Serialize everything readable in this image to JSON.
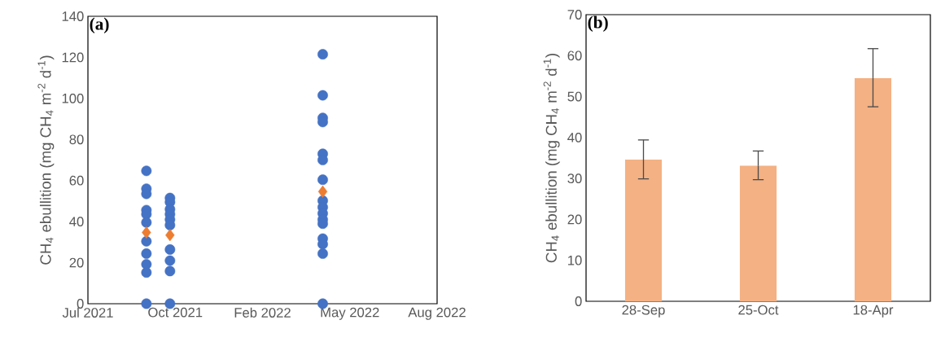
{
  "chart_data": [
    {
      "type": "scatter",
      "title": "(a)",
      "ylabel": "CH$_{4}$ ebullition (mg CH$_{4}$ m$^{-2}$ d$^{-1}$)",
      "xlim": [
        "2021-07-23",
        "2022-08-27"
      ],
      "xticks": [
        {
          "value": "2021-07-23",
          "label": "Jul 2021"
        },
        {
          "value": "2021-10-31",
          "label": "Oct 2021"
        },
        {
          "value": "2022-02-08",
          "label": "Feb 2022"
        },
        {
          "value": "2022-05-19",
          "label": "May 2022"
        },
        {
          "value": "2022-08-27",
          "label": "Aug 2022"
        }
      ],
      "ylim": [
        0,
        140
      ],
      "yticks": [
        0,
        20,
        40,
        60,
        80,
        100,
        120,
        140
      ],
      "series": [
        {
          "color": "#4472c4",
          "marker": "circle",
          "x": [
            "2021-09-28",
            "2021-09-28",
            "2021-09-28",
            "2021-09-28",
            "2021-09-28",
            "2021-09-28",
            "2021-09-28",
            "2021-09-28",
            "2021-09-28",
            "2021-09-28",
            "2021-09-28",
            "2021-10-25",
            "2021-10-25",
            "2021-10-25",
            "2021-10-25",
            "2021-10-25",
            "2021-10-25",
            "2021-10-25",
            "2021-10-25",
            "2021-10-25",
            "2021-10-25",
            "2022-04-18",
            "2022-04-18",
            "2022-04-18",
            "2022-04-18",
            "2022-04-18",
            "2022-04-18",
            "2022-04-18",
            "2022-04-18",
            "2022-04-18",
            "2022-04-18",
            "2022-04-18",
            "2022-04-18",
            "2022-04-18",
            "2022-04-18",
            "2022-04-18",
            "2022-04-18"
          ],
          "values": [
            64.7,
            56,
            53.5,
            45.6,
            43.6,
            39.6,
            30.4,
            24.4,
            19.2,
            15.2,
            0,
            51.5,
            49.5,
            46,
            43.6,
            41,
            38.3,
            26.4,
            21,
            15.9,
            0,
            121.5,
            101.5,
            90.5,
            88.5,
            73,
            70,
            60.4,
            50.2,
            47,
            44,
            41,
            39,
            31.7,
            29,
            24.4,
            0
          ]
        },
        {
          "color": "#ed7d31",
          "marker": "diamond",
          "x": [
            "2021-09-28",
            "2021-10-25",
            "2022-04-18"
          ],
          "values": [
            34.7,
            33.4,
            54.6
          ]
        }
      ]
    },
    {
      "type": "bar",
      "title": "(b)",
      "ylabel": "CH$_{4}$ ebullition (mg CH$_{4}$ m$^{-2}$ d$^{-1}$)",
      "categories": [
        "28-Sep",
        "25-Oct",
        "18-Apr"
      ],
      "values": [
        34.6,
        33.1,
        54.5
      ],
      "color": "#f4b183",
      "errors": [
        [
          29.9,
          39.4
        ],
        [
          29.7,
          36.7
        ],
        [
          47.5,
          61.7
        ]
      ],
      "ylim": [
        0,
        70
      ],
      "yticks": [
        0,
        10,
        20,
        30,
        40,
        50,
        60,
        70
      ]
    }
  ]
}
